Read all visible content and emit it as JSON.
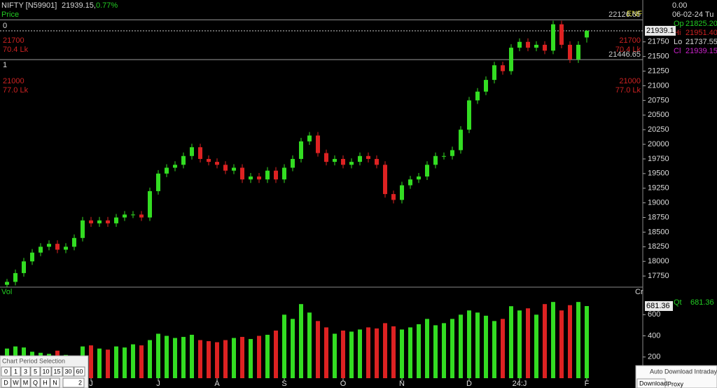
{
  "header": {
    "symbol": "NIFTY [N59901]",
    "price": "21939.15,",
    "change": "0.77%",
    "panel": "Price"
  },
  "info": {
    "change": "0.00",
    "date": "06-02-24 Tu",
    "op_label": "Op",
    "op": "21825.20",
    "hi_label": "Hi",
    "hi": "21951.40",
    "lo_label": "Lo",
    "lo": "21737.55",
    "cl_label": "Cl",
    "cl": "21939.15",
    "qt_label": "Qt",
    "qt": "681.36"
  },
  "annotations": {
    "left": [
      "0",
      "21700",
      "70.4 Lk",
      "1",
      "21000",
      "77.0 Lk"
    ],
    "right": [
      "21700",
      "70.4 Lk",
      "21000",
      "77.0 Lk"
    ],
    "enf": "ENF"
  },
  "chart_data": [
    {
      "type": "candlestick",
      "up_color": "#33dd22",
      "down_color": "#dd2222",
      "open": [
        17600,
        17650,
        17800,
        18000,
        18150,
        18250,
        18300,
        18200,
        18250,
        18400,
        18700,
        18650,
        18700,
        18650,
        18750,
        18800,
        18800,
        18750,
        19200,
        19500,
        19600,
        19650,
        19800,
        19950,
        19750,
        19700,
        19650,
        19550,
        19600,
        19400,
        19450,
        19400,
        19550,
        19400,
        19600,
        19750,
        20050,
        20150,
        19850,
        19700,
        19750,
        19650,
        19700,
        19800,
        19750,
        19650,
        19150,
        19050,
        19300,
        19400,
        19450,
        19650,
        19800,
        19800,
        19900,
        20250,
        20750,
        20900,
        21100,
        21350,
        21250,
        21650,
        21750,
        21650,
        21700,
        21600,
        22050,
        21700,
        21450,
        21825.2
      ],
      "high": [
        17700,
        17860,
        18060,
        18210,
        18310,
        18360,
        18360,
        18310,
        18460,
        18760,
        18760,
        18760,
        18760,
        18810,
        18860,
        18860,
        18860,
        19260,
        19560,
        19660,
        19710,
        19860,
        20010,
        20010,
        19810,
        19760,
        19710,
        19660,
        19660,
        19510,
        19510,
        19610,
        19610,
        19660,
        19810,
        20110,
        20210,
        20210,
        19910,
        19810,
        19810,
        19760,
        19860,
        19860,
        19810,
        19710,
        19210,
        19360,
        19460,
        19510,
        19710,
        19860,
        19860,
        19960,
        20310,
        20810,
        20960,
        21160,
        21410,
        21410,
        21710,
        21810,
        21810,
        21760,
        21760,
        22110,
        22110,
        21760,
        21760,
        21951.4
      ],
      "low": [
        17560,
        17590,
        17740,
        17940,
        18090,
        18190,
        18140,
        18140,
        18190,
        18340,
        18590,
        18590,
        18590,
        18590,
        18690,
        18740,
        18690,
        18690,
        19140,
        19440,
        19540,
        19590,
        19740,
        19690,
        19640,
        19590,
        19490,
        19490,
        19340,
        19340,
        19340,
        19340,
        19340,
        19340,
        19540,
        19690,
        19990,
        19790,
        19640,
        19640,
        19590,
        19590,
        19640,
        19690,
        19590,
        19090,
        18990,
        18990,
        19240,
        19340,
        19390,
        19590,
        19740,
        19740,
        19840,
        20190,
        20690,
        20840,
        21040,
        21190,
        21190,
        21590,
        21590,
        21590,
        21540,
        21540,
        21640,
        21390,
        21390,
        21737.55
      ],
      "close": [
        17650,
        17800,
        18000,
        18150,
        18250,
        18300,
        18200,
        18250,
        18400,
        18700,
        18650,
        18700,
        18650,
        18750,
        18800,
        18800,
        18750,
        19200,
        19500,
        19600,
        19650,
        19800,
        19950,
        19750,
        19700,
        19650,
        19550,
        19600,
        19400,
        19450,
        19400,
        19550,
        19400,
        19600,
        19750,
        20050,
        20150,
        19850,
        19700,
        19750,
        19650,
        19700,
        19800,
        19750,
        19650,
        19150,
        19050,
        19300,
        19400,
        19450,
        19650,
        19800,
        19800,
        19900,
        20250,
        20750,
        20900,
        21100,
        21350,
        21250,
        21650,
        21750,
        21650,
        21700,
        21600,
        22050,
        21700,
        21450,
        21700,
        21939.15
      ],
      "ylim": [
        17560,
        22130
      ],
      "yticks": [
        17750,
        18000,
        18250,
        18500,
        18750,
        19000,
        19250,
        19500,
        19750,
        20000,
        20250,
        20500,
        20750,
        21000,
        21250,
        21500,
        21750
      ],
      "ref_lines": [
        {
          "value": 22126.65,
          "label": "22126.65"
        },
        {
          "value": 21446.65,
          "label": "21446.65"
        }
      ],
      "last": {
        "value": 21939.15,
        "label": "21939.1"
      }
    },
    {
      "type": "bar",
      "title": "Vol",
      "unit": "Cr",
      "categories": [
        null,
        null,
        null,
        null,
        null,
        null,
        null,
        null,
        null,
        null,
        "J",
        null,
        null,
        null,
        null,
        null,
        null,
        null,
        "J",
        null,
        null,
        null,
        null,
        null,
        null,
        "A",
        null,
        null,
        null,
        null,
        null,
        null,
        null,
        "S",
        null,
        null,
        null,
        null,
        null,
        null,
        "O",
        null,
        null,
        null,
        null,
        null,
        null,
        "N",
        null,
        null,
        null,
        null,
        null,
        null,
        null,
        "D",
        null,
        null,
        null,
        null,
        null,
        "24:J",
        null,
        null,
        null,
        null,
        null,
        null,
        null,
        "F"
      ],
      "values": [
        280,
        300,
        290,
        250,
        240,
        230,
        260,
        220,
        200,
        300,
        310,
        280,
        270,
        300,
        290,
        320,
        310,
        360,
        420,
        400,
        380,
        390,
        410,
        360,
        350,
        340,
        360,
        380,
        390,
        370,
        400,
        410,
        450,
        600,
        560,
        700,
        620,
        540,
        480,
        420,
        450,
        440,
        460,
        480,
        470,
        520,
        490,
        460,
        480,
        510,
        560,
        500,
        520,
        560,
        600,
        640,
        620,
        590,
        540,
        560,
        680,
        640,
        660,
        600,
        700,
        720,
        640,
        690,
        720,
        681.36
      ],
      "ylim": [
        0,
        860
      ],
      "yticks": [
        200,
        400,
        600
      ],
      "last": {
        "value": 681.36,
        "label": "681.36"
      }
    }
  ],
  "period": {
    "title": "Chart Period Selection",
    "row1": [
      "0",
      "1",
      "3",
      "5",
      "10",
      "15",
      "30",
      "60"
    ],
    "row2": [
      "D",
      "W",
      "M",
      "Q",
      "H",
      "N"
    ],
    "input": "2"
  },
  "popup": {
    "title": "Auto Download Intraday fi",
    "tabs": [
      "Download",
      "Proxy"
    ]
  }
}
